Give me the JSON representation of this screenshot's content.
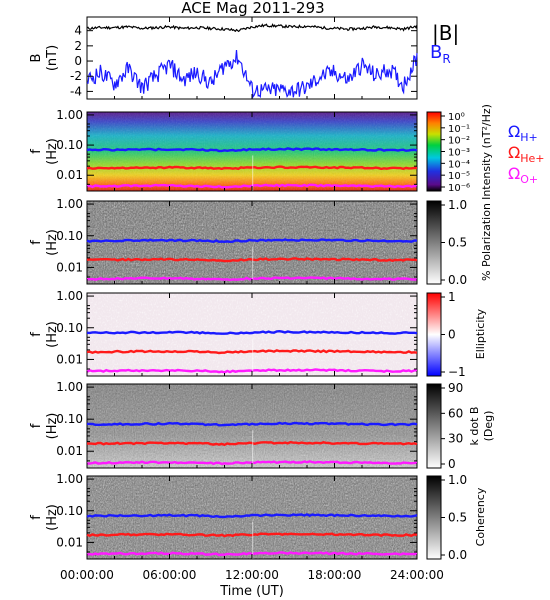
{
  "title": "ACE Mag 2011-293",
  "x_axis": {
    "label": "Time (UT)",
    "ticks": [
      "00:00:00",
      "06:00:00",
      "12:00:00",
      "18:00:00",
      "24:00:00"
    ],
    "range_hours": [
      0,
      24
    ]
  },
  "legend": {
    "top": [
      {
        "label": "|B|",
        "color": "#000000"
      },
      {
        "label": "B",
        "sub": "R",
        "color": "#1a1aff"
      }
    ],
    "gyro": [
      {
        "label": "Ω",
        "sub": "H+",
        "color": "#1a1aff"
      },
      {
        "label": "Ω",
        "sub": "He+",
        "color": "#ff1a1a"
      },
      {
        "label": "Ω",
        "sub": "O+",
        "color": "#ff1aff"
      }
    ]
  },
  "colors": {
    "total_field": "#000000",
    "radial_field": "#1a1aff",
    "gyro_h": "#1a1aff",
    "gyro_he": "#ff1a1a",
    "gyro_o": "#ff1aff"
  },
  "chart_data": [
    {
      "type": "line",
      "panel": "magnetic field",
      "ylabel": "B",
      "yunit": "(nT)",
      "ylim": [
        -5,
        5.8
      ],
      "yticks": [
        "4",
        "2",
        "0",
        "-2",
        "-4"
      ],
      "x_hours": [
        0,
        1,
        2,
        3,
        4,
        5,
        6,
        7,
        8,
        9,
        10,
        11,
        12,
        13,
        14,
        15,
        16,
        17,
        18,
        19,
        20,
        21,
        22,
        23,
        24
      ],
      "series": [
        {
          "name": "|B|",
          "color": "#000000",
          "values": [
            4.3,
            4.4,
            4.4,
            4.5,
            4.3,
            4.4,
            4.5,
            4.3,
            4.4,
            4.3,
            4.2,
            4.0,
            4.5,
            4.7,
            4.6,
            4.5,
            4.6,
            4.4,
            4.3,
            4.2,
            4.3,
            4.5,
            4.4,
            4.2,
            4.6
          ]
        },
        {
          "name": "B",
          "name_sub": "R",
          "color": "#1a1aff",
          "values": [
            -2.5,
            -1.5,
            -3.0,
            -1.0,
            -3.5,
            -2.0,
            -0.5,
            -2.5,
            -1.5,
            -3.0,
            -0.5,
            0.5,
            -3.8,
            -3.9,
            -3.8,
            -3.9,
            -3.5,
            -2.0,
            -1.5,
            -2.5,
            -0.5,
            -2.0,
            -1.0,
            -3.2,
            0.5
          ]
        }
      ]
    },
    {
      "type": "heatmap",
      "panel": "intensity",
      "ylabel": "f",
      "yunit": "(Hz)",
      "yscale": "log",
      "yticks": [
        "1.00",
        "0.10",
        "0.01"
      ],
      "colorbar": {
        "label": "Intensity (nT²/Hz)",
        "scale": "log",
        "ticks": [
          "10⁰",
          "10⁻¹",
          "10⁻²",
          "10⁻³",
          "10⁻⁴",
          "10⁻⁵",
          "10⁻⁶"
        ],
        "colormap": "rainbow"
      }
    },
    {
      "type": "heatmap",
      "panel": "polarization",
      "ylabel": "f",
      "yunit": "(Hz)",
      "yscale": "log",
      "yticks": [
        "1.00",
        "0.10",
        "0.01"
      ],
      "colorbar": {
        "label": "% Polarization",
        "ticks": [
          "1.0",
          "0.5",
          "0.0"
        ],
        "colormap": "gray"
      }
    },
    {
      "type": "heatmap",
      "panel": "ellipticity",
      "ylabel": "f",
      "yunit": "(Hz)",
      "yscale": "log",
      "yticks": [
        "1.00",
        "0.10",
        "0.01"
      ],
      "colorbar": {
        "label": "Ellipticity",
        "ticks": [
          "1",
          "0",
          "−1"
        ],
        "colormap": "blue-white-red"
      }
    },
    {
      "type": "heatmap",
      "panel": "k dot B",
      "ylabel": "f",
      "yunit": "(Hz)",
      "yscale": "log",
      "yticks": [
        "1.00",
        "0.10",
        "0.01"
      ],
      "colorbar": {
        "label": "k dot B",
        "unit": "(Deg)",
        "ticks": [
          "90",
          "60",
          "30",
          "0"
        ],
        "colormap": "gray"
      }
    },
    {
      "type": "heatmap",
      "panel": "coherency",
      "ylabel": "f",
      "yunit": "(Hz)",
      "yscale": "log",
      "yticks": [
        "1.00",
        "0.10",
        "0.01"
      ],
      "colorbar": {
        "label": "Coherency",
        "ticks": [
          "1.0",
          "0.5",
          "0.0"
        ],
        "colormap": "gray"
      }
    }
  ],
  "gyro_lines_hz": {
    "x_hours": [
      0,
      2,
      4,
      6,
      8,
      10,
      12,
      14,
      16,
      18,
      20,
      22,
      24
    ],
    "h": [
      0.068,
      0.07,
      0.071,
      0.072,
      0.07,
      0.066,
      0.071,
      0.074,
      0.073,
      0.072,
      0.07,
      0.068,
      0.069
    ],
    "he": [
      0.017,
      0.0175,
      0.0178,
      0.018,
      0.0175,
      0.0165,
      0.0178,
      0.0185,
      0.0183,
      0.018,
      0.0175,
      0.017,
      0.0172
    ],
    "o": [
      0.0043,
      0.0044,
      0.0045,
      0.0045,
      0.0044,
      0.0041,
      0.0045,
      0.0046,
      0.0046,
      0.0045,
      0.0044,
      0.0043,
      0.0043
    ]
  }
}
